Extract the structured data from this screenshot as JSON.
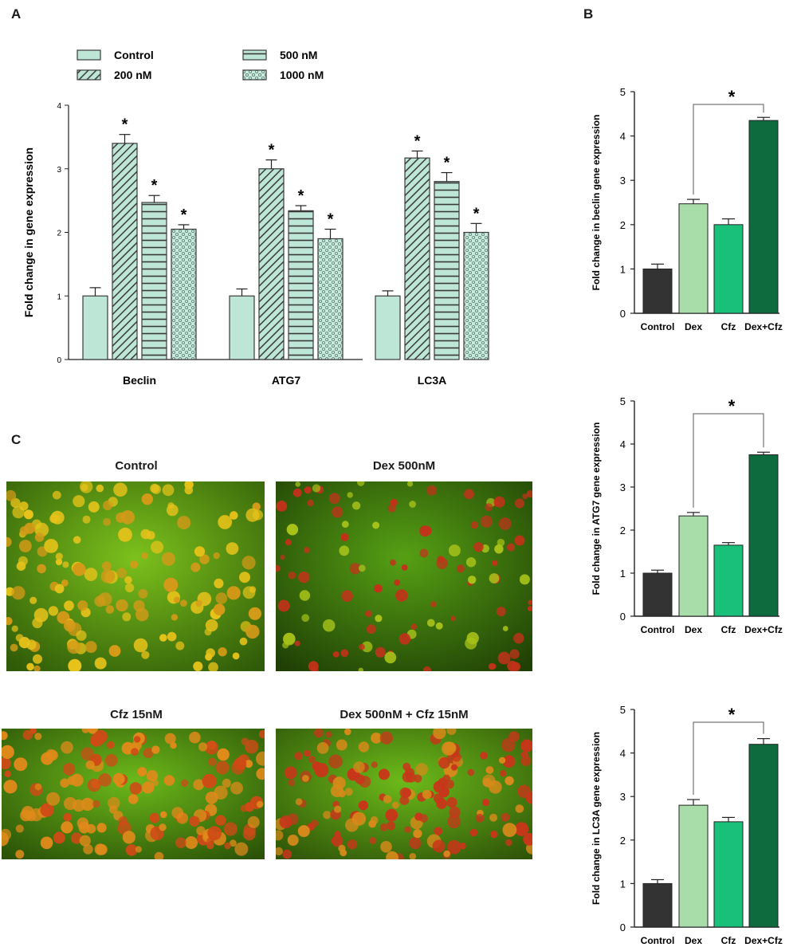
{
  "panels": {
    "a": "A",
    "b": "B",
    "c": "C"
  },
  "legend_swatch_stroke": "#3a3a3a",
  "chart_data": [
    {
      "panel": "A",
      "type": "bar",
      "categories": [
        "Beclin",
        "ATG7",
        "LC3A"
      ],
      "ylabel": "Fold change in gene expression",
      "xlabel": "",
      "ylim": [
        0,
        4
      ],
      "yticks": [
        "0",
        "1",
        "2",
        "3",
        "4"
      ],
      "legend_placement": "top",
      "significance_marker": "*",
      "series": [
        {
          "name": "Control",
          "color": "#bde6d6",
          "pattern": "solid",
          "values": [
            1.0,
            1.0,
            1.0
          ],
          "errors": [
            0.13,
            0.11,
            0.08
          ],
          "sig": [
            false,
            false,
            false
          ]
        },
        {
          "name": "200 nM",
          "color": "#bde6d6",
          "pattern": "diagonal",
          "values": [
            3.4,
            3.0,
            3.17
          ],
          "errors": [
            0.14,
            0.14,
            0.11
          ],
          "sig": [
            true,
            true,
            true
          ]
        },
        {
          "name": "500 nM",
          "color": "#bde6d6",
          "pattern": "horizontal",
          "values": [
            2.47,
            2.34,
            2.8
          ],
          "errors": [
            0.11,
            0.08,
            0.14
          ],
          "sig": [
            true,
            true,
            true
          ]
        },
        {
          "name": "1000 nM",
          "color": "#bde6d6",
          "pattern": "dots",
          "values": [
            2.05,
            1.9,
            2.0
          ],
          "errors": [
            0.07,
            0.15,
            0.14
          ],
          "sig": [
            true,
            true,
            true
          ]
        }
      ]
    },
    {
      "panel": "B1",
      "type": "bar",
      "categories": [
        "Control",
        "Dex",
        "Cfz",
        "Dex+Cfz"
      ],
      "ylabel": "Fold change in beclin gene expression",
      "ylim": [
        0,
        5
      ],
      "yticks": [
        "0",
        "1",
        "2",
        "3",
        "4",
        "5"
      ],
      "colors": [
        "#333333",
        "#a8ddaa",
        "#19c07a",
        "#0e6b3d"
      ],
      "values": [
        1.0,
        2.47,
        2.0,
        4.35
      ],
      "errors": [
        0.11,
        0.1,
        0.13,
        0.07
      ],
      "significance": {
        "from": "Dex",
        "to": "Dex+Cfz",
        "label": "*"
      }
    },
    {
      "panel": "B2",
      "type": "bar",
      "categories": [
        "Control",
        "Dex",
        "Cfz",
        "Dex+Cfz"
      ],
      "ylabel": "Fold change in ATG7 gene expression",
      "ylim": [
        0,
        5
      ],
      "yticks": [
        "0",
        "1",
        "2",
        "3",
        "4",
        "5"
      ],
      "colors": [
        "#333333",
        "#a8ddaa",
        "#19c07a",
        "#0e6b3d"
      ],
      "values": [
        1.0,
        2.33,
        1.65,
        3.75
      ],
      "errors": [
        0.07,
        0.08,
        0.06,
        0.06
      ],
      "significance": {
        "from": "Dex",
        "to": "Dex+Cfz",
        "label": "*"
      }
    },
    {
      "panel": "B3",
      "type": "bar",
      "categories": [
        "Control",
        "Dex",
        "Cfz",
        "Dex+Cfz"
      ],
      "ylabel": "Fold change in LC3A gene expression",
      "ylim": [
        0,
        5
      ],
      "yticks": [
        "0",
        "1",
        "2",
        "3",
        "4",
        "5"
      ],
      "colors": [
        "#333333",
        "#a8ddaa",
        "#19c07a",
        "#0e6b3d"
      ],
      "values": [
        1.0,
        2.8,
        2.42,
        4.2
      ],
      "errors": [
        0.09,
        0.13,
        0.1,
        0.13
      ],
      "significance": {
        "from": "Dex",
        "to": "Dex+Cfz",
        "label": "*"
      }
    }
  ],
  "micrographs": [
    {
      "title": "Control",
      "bg_center": "#7cc11c",
      "bg_edge": "#2f5a08",
      "cell_color": "#e6c21a",
      "cell_alt": "#d49a18"
    },
    {
      "title": "Dex 500nM",
      "bg_center": "#56a014",
      "bg_edge": "#1f3f05",
      "cell_color": "#c3321a",
      "cell_alt": "#a8c21a"
    },
    {
      "title": "Cfz 15nM",
      "bg_center": "#6cb81a",
      "bg_edge": "#2b5207",
      "cell_color": "#e08a1a",
      "cell_alt": "#cf4a16"
    },
    {
      "title": "Dex 500nM + Cfz 15nM",
      "bg_center": "#6cba1a",
      "bg_edge": "#2f5408",
      "cell_color": "#c8361a",
      "cell_alt": "#d88a1a"
    }
  ]
}
